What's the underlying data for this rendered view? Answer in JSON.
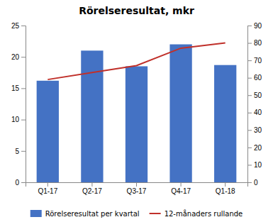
{
  "chart_data": {
    "type": "bar",
    "title": "Rörelseresultat, mkr",
    "categories": [
      "Q1-17",
      "Q2-17",
      "Q3-17",
      "Q4-17",
      "Q1-18"
    ],
    "series": [
      {
        "name": "Rörelseresultat per kvartal",
        "type": "bar",
        "color": "#4472C4",
        "values": [
          16.2,
          21.0,
          18.5,
          22.0,
          18.7
        ]
      },
      {
        "name": "12-månaders rullande",
        "type": "line",
        "axis": "y2",
        "color": "#C0302A",
        "values": [
          59.0,
          63.0,
          67.0,
          77.0,
          80.0
        ]
      }
    ],
    "ylim": [
      0,
      25
    ],
    "yticks": [
      0,
      5,
      10,
      15,
      20,
      25
    ],
    "y2lim": [
      0,
      90
    ],
    "y2ticks": [
      0,
      10,
      20,
      30,
      40,
      50,
      60,
      70,
      80,
      90
    ],
    "grid": false,
    "legend": "bottom"
  }
}
